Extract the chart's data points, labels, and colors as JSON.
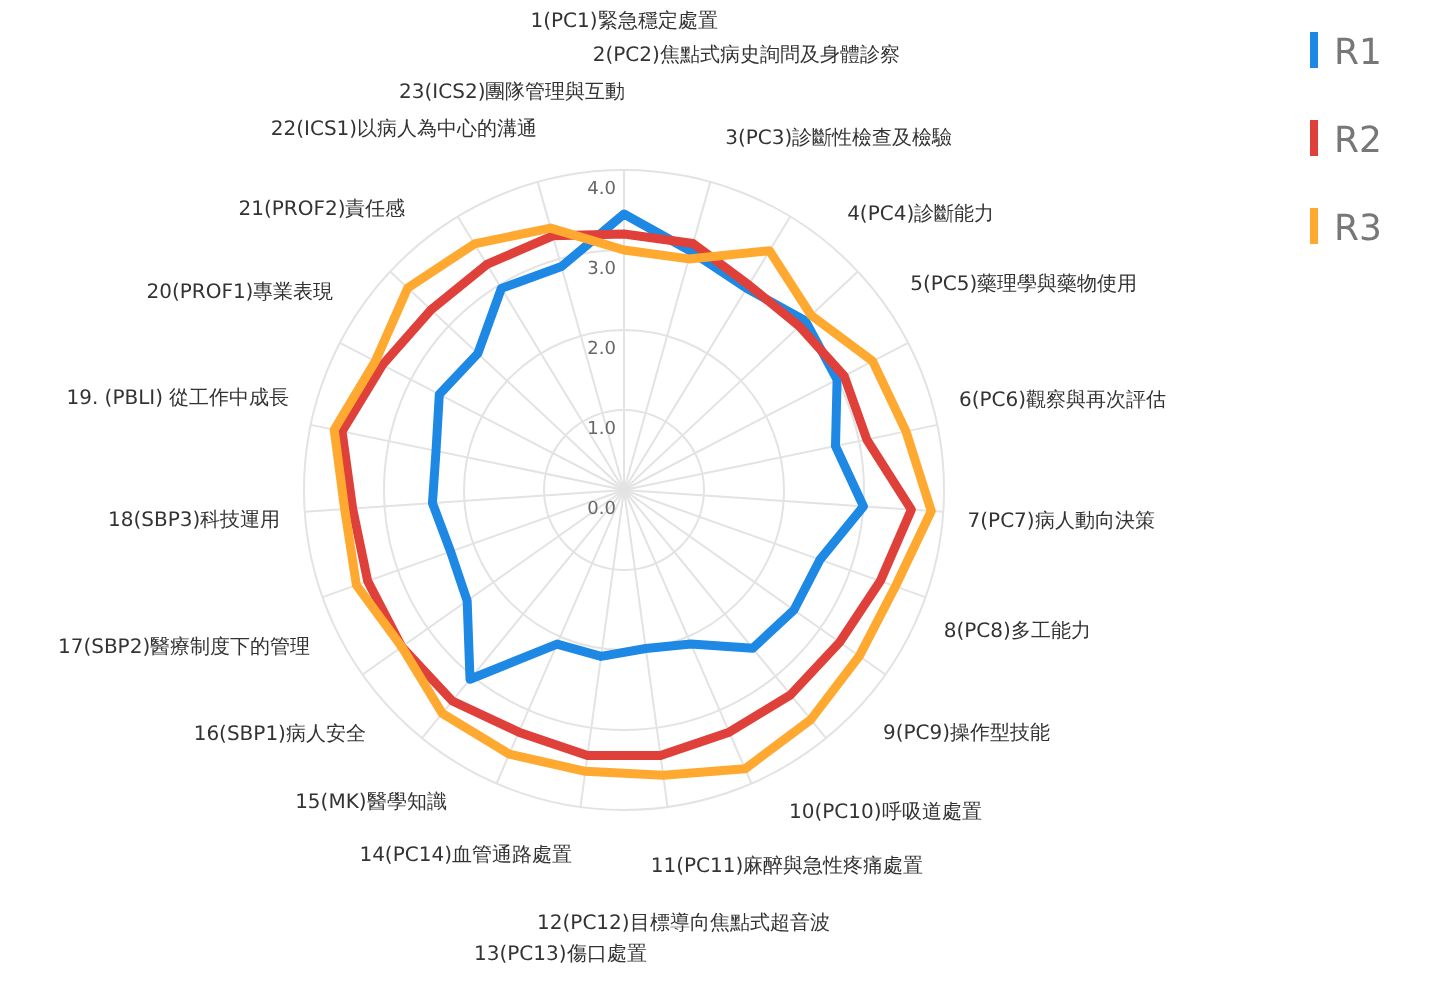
{
  "chart_data": {
    "type": "radar",
    "categories": [
      "1(PC1)緊急穩定處置",
      "2(PC2)焦點式病史詢問及身體診察",
      "3(PC3)診斷性檢查及檢驗",
      "4(PC4)診斷能力",
      "5(PC5)藥理學與藥物使用",
      "6(PC6)觀察與再次評估",
      "7(PC7)病人動向決策",
      "8(PC8)多工能力",
      "9(PC9)操作型技能",
      "10(PC10)呼吸道處置",
      "11(PC11)麻醉與急性疼痛處置",
      "12(PC12)目標導向焦點式超音波",
      "13(PC13)傷口處置",
      "14(PC14)血管通路處置",
      "15(MK)醫學知識",
      "16(SBP1)病人安全",
      "17(SBP2)醫療制度下的管理",
      "18(SBP3)科技運用",
      "19. (PBLI) 從工作中成長",
      "20(PROF1)專業表現",
      "21(PROF2)責任感",
      "22(ICS1)以病人為中心的溝通",
      "23(ICS2)團隊管理與互動"
    ],
    "series": [
      {
        "name": "R1",
        "color": "#1e88e5",
        "values": [
          3.45,
          3.1,
          2.95,
          3.1,
          3.0,
          2.7,
          3.0,
          2.6,
          2.6,
          2.55,
          2.1,
          2.0,
          2.1,
          2.1,
          3.05,
          2.4,
          2.3,
          2.4,
          2.4,
          2.6,
          2.5,
          2.95,
          2.9
        ]
      },
      {
        "name": "R2",
        "color": "#e0403a",
        "values": [
          3.2,
          3.2,
          3.0,
          3.0,
          3.1,
          3.1,
          3.6,
          3.4,
          3.3,
          3.3,
          3.3,
          3.35,
          3.35,
          3.3,
          3.4,
          3.4,
          3.4,
          3.4,
          3.6,
          3.4,
          3.3,
          3.3,
          3.3
        ]
      },
      {
        "name": "R3",
        "color": "#ffa931",
        "values": [
          3.0,
          3.0,
          3.5,
          3.2,
          3.5,
          3.6,
          3.85,
          3.6,
          3.6,
          3.7,
          3.8,
          3.6,
          3.55,
          3.6,
          3.6,
          3.4,
          3.55,
          3.5,
          3.7,
          3.5,
          3.7,
          3.6,
          3.4
        ]
      }
    ],
    "ylim": [
      0,
      4
    ],
    "yticks": [
      {
        "value": 0,
        "label": "0.0"
      },
      {
        "value": 1,
        "label": "1.0"
      },
      {
        "value": 2,
        "label": "2.0"
      },
      {
        "value": 3,
        "label": "3.0"
      },
      {
        "value": 4,
        "label": "4.0"
      }
    ],
    "legend": "top right"
  }
}
